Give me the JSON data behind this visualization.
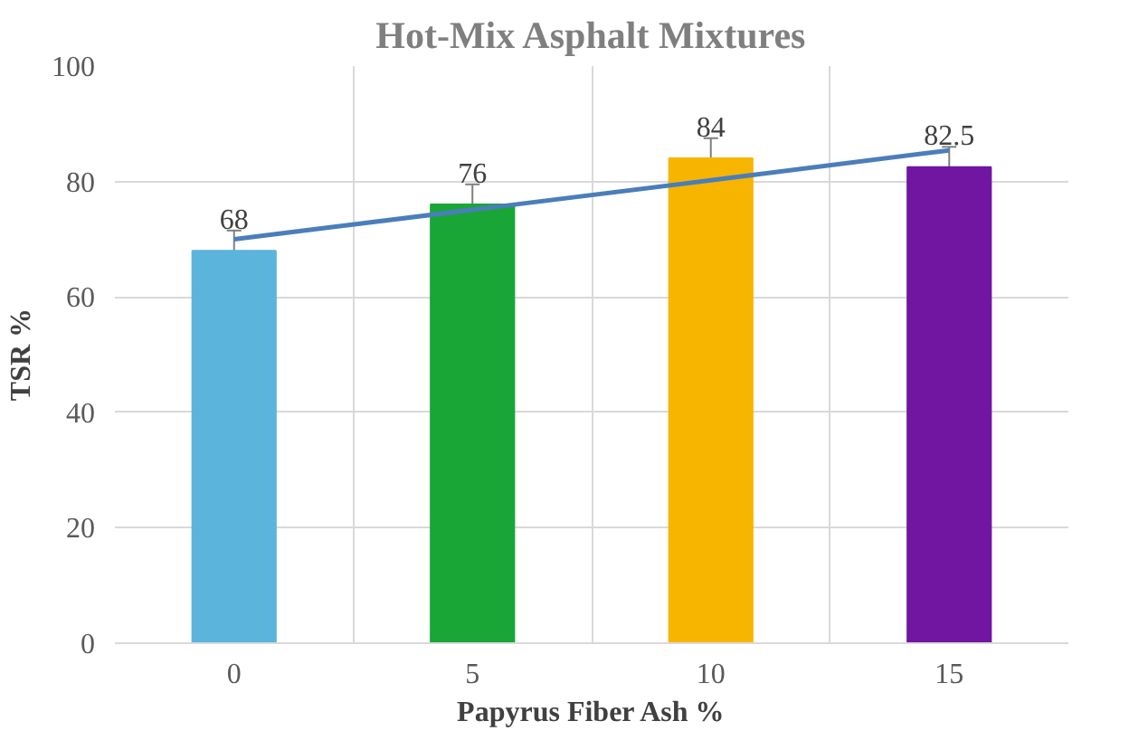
{
  "chart_data": {
    "type": "bar",
    "title": "Hot-Mix Asphalt Mixtures",
    "xlabel": "Papyrus Fiber Ash %",
    "ylabel": "TSR %",
    "categories": [
      "0",
      "5",
      "10",
      "15"
    ],
    "series": [
      {
        "values": [
          68,
          76,
          84,
          82.5
        ],
        "colors": [
          "#5bb4dc",
          "#1aa637",
          "#f7b500",
          "#7016a0"
        ],
        "errors": [
          3.5,
          3.5,
          3.5,
          3.5
        ],
        "value_labels": [
          "68",
          "76",
          "84",
          "82.5"
        ]
      },
      {
        "type": "line",
        "values": [
          70,
          75.1,
          80.2,
          85.4
        ],
        "color": "#4a7ebb"
      }
    ],
    "ylim": [
      0,
      100
    ],
    "yticks": [
      0,
      20,
      40,
      60,
      80,
      100
    ],
    "grid": true
  }
}
